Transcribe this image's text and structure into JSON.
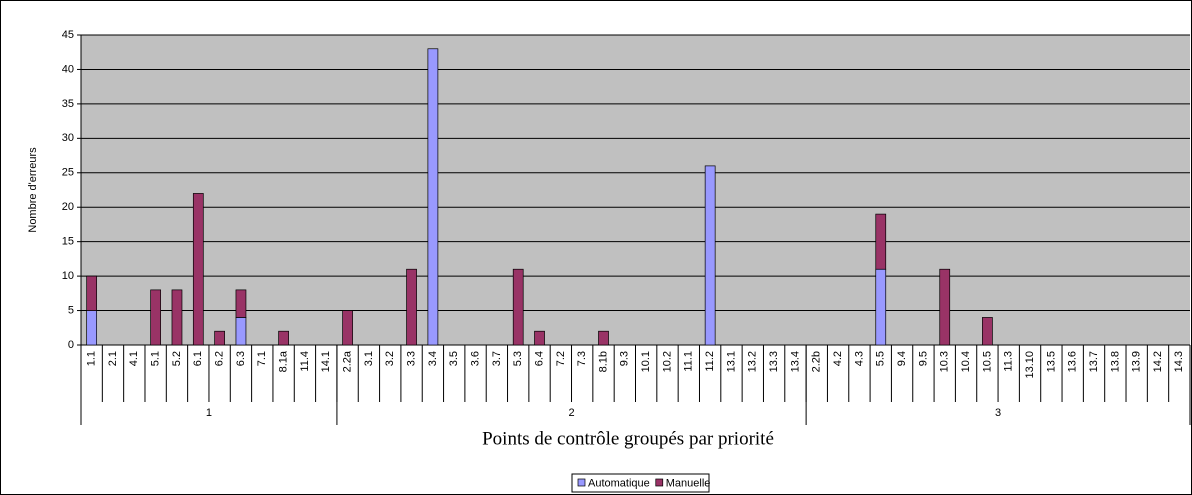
{
  "chart_data": {
    "type": "bar",
    "stacked": true,
    "y_label": "Nombre d'erreurs",
    "x_label": "Points de contrôle groupés par priorité",
    "groups": [
      {
        "name": "1",
        "categories": [
          "1.1",
          "2.1",
          "4.1",
          "5.1",
          "5.2",
          "6.1",
          "6.2",
          "6.3",
          "7.1",
          "8.1a",
          "11.4",
          "14.1"
        ]
      },
      {
        "name": "2",
        "categories": [
          "2.2a",
          "3.1",
          "3.2",
          "3.3",
          "3.4",
          "3.5",
          "3.6",
          "3.7",
          "5.3",
          "6.4",
          "7.2",
          "7.3",
          "8.1b",
          "9.3",
          "10.1",
          "10.2",
          "11.1",
          "11.2",
          "13.1",
          "13.2",
          "13.3",
          "13.4"
        ]
      },
      {
        "name": "3",
        "categories": [
          "2.2b",
          "4.2",
          "4.3",
          "5.5",
          "9.4",
          "9.5",
          "10.3",
          "10.4",
          "10.5",
          "11.3",
          "13.10",
          "13.5",
          "13.6",
          "13.7",
          "13.8",
          "13.9",
          "14.2",
          "14.3"
        ]
      }
    ],
    "series": [
      {
        "name": "Automatique",
        "color": "#9999ff",
        "values": [
          5,
          0,
          0,
          0,
          0,
          0,
          0,
          4,
          0,
          0,
          0,
          0,
          0,
          0,
          0,
          0,
          43,
          0,
          0,
          0,
          0,
          0,
          0,
          0,
          0,
          0,
          0,
          0,
          0,
          26,
          0,
          0,
          0,
          0,
          0,
          0,
          0,
          11,
          0,
          0,
          0,
          0,
          0,
          0,
          0,
          0,
          0,
          0,
          0,
          0,
          0,
          0
        ]
      },
      {
        "name": "Manuelle",
        "color": "#993366",
        "values": [
          5,
          0,
          0,
          8,
          8,
          22,
          2,
          4,
          0,
          2,
          0,
          0,
          5,
          0,
          0,
          11,
          0,
          0,
          0,
          0,
          11,
          2,
          0,
          0,
          2,
          0,
          0,
          0,
          0,
          0,
          0,
          0,
          0,
          0,
          0,
          0,
          0,
          8,
          0,
          0,
          11,
          0,
          4,
          0,
          0,
          0,
          0,
          0,
          0,
          0,
          0,
          0
        ]
      }
    ],
    "ylim": [
      0,
      45
    ],
    "yticks": [
      0,
      5,
      10,
      15,
      20,
      25,
      30,
      35,
      40,
      45
    ],
    "grid": true,
    "plot_background": "#c0c0c0",
    "legend": "bottom"
  }
}
